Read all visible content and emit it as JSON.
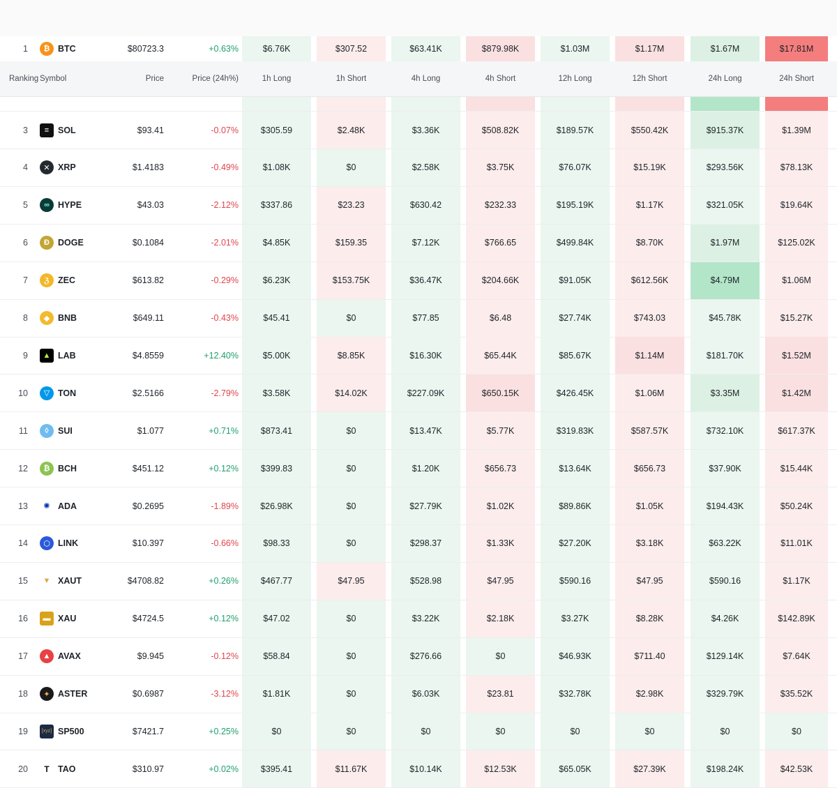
{
  "columns": [
    "Ranking",
    "Symbol",
    "Price",
    "Price (24h%)",
    "1h Long",
    "1h Short",
    "4h Long",
    "4h Short",
    "12h Long",
    "12h Short",
    "24h Long",
    "24h Short"
  ],
  "colors": {
    "positive": "#20a06e",
    "negative": "#e0464e"
  },
  "first_row": {
    "rank": "1",
    "symbol": "BTC",
    "icon": "bitcoin-icon",
    "price": "$80723.3",
    "change": "+0.63%",
    "values": [
      "$6.76K",
      "$307.52",
      "$63.41K",
      "$879.98K",
      "$1.03M",
      "$1.17M",
      "$1.67M",
      "$17.81M"
    ]
  },
  "rows": [
    {
      "rank": "3",
      "symbol": "SOL",
      "icon": "solana-icon",
      "price": "$93.41",
      "change": "-0.07%",
      "values": [
        "$305.59",
        "$2.48K",
        "$3.36K",
        "$508.82K",
        "$189.57K",
        "$550.42K",
        "$915.37K",
        "$1.39M"
      ]
    },
    {
      "rank": "4",
      "symbol": "XRP",
      "icon": "xrp-icon",
      "price": "$1.4183",
      "change": "-0.49%",
      "values": [
        "$1.08K",
        "$0",
        "$2.58K",
        "$3.75K",
        "$76.07K",
        "$15.19K",
        "$293.56K",
        "$78.13K"
      ]
    },
    {
      "rank": "5",
      "symbol": "HYPE",
      "icon": "hype-icon",
      "price": "$43.03",
      "change": "-2.12%",
      "values": [
        "$337.86",
        "$23.23",
        "$630.42",
        "$232.33",
        "$195.19K",
        "$1.17K",
        "$321.05K",
        "$19.64K"
      ]
    },
    {
      "rank": "6",
      "symbol": "DOGE",
      "icon": "doge-icon",
      "price": "$0.1084",
      "change": "-2.01%",
      "values": [
        "$4.85K",
        "$159.35",
        "$7.12K",
        "$766.65",
        "$499.84K",
        "$8.70K",
        "$1.97M",
        "$125.02K"
      ]
    },
    {
      "rank": "7",
      "symbol": "ZEC",
      "icon": "zcash-icon",
      "price": "$613.82",
      "change": "-0.29%",
      "values": [
        "$6.23K",
        "$153.75K",
        "$36.47K",
        "$204.66K",
        "$91.05K",
        "$612.56K",
        "$4.79M",
        "$1.06M"
      ]
    },
    {
      "rank": "8",
      "symbol": "BNB",
      "icon": "bnb-icon",
      "price": "$649.11",
      "change": "-0.43%",
      "values": [
        "$45.41",
        "$0",
        "$77.85",
        "$6.48",
        "$27.74K",
        "$743.03",
        "$45.78K",
        "$15.27K"
      ]
    },
    {
      "rank": "9",
      "symbol": "LAB",
      "icon": "lab-icon",
      "price": "$4.8559",
      "change": "+12.40%",
      "values": [
        "$5.00K",
        "$8.85K",
        "$16.30K",
        "$65.44K",
        "$85.67K",
        "$1.14M",
        "$181.70K",
        "$1.52M"
      ]
    },
    {
      "rank": "10",
      "symbol": "TON",
      "icon": "ton-icon",
      "price": "$2.5166",
      "change": "-2.79%",
      "values": [
        "$3.58K",
        "$14.02K",
        "$227.09K",
        "$650.15K",
        "$426.45K",
        "$1.06M",
        "$3.35M",
        "$1.42M"
      ]
    },
    {
      "rank": "11",
      "symbol": "SUI",
      "icon": "sui-icon",
      "price": "$1.077",
      "change": "+0.71%",
      "values": [
        "$873.41",
        "$0",
        "$13.47K",
        "$5.77K",
        "$319.83K",
        "$587.57K",
        "$732.10K",
        "$617.37K"
      ]
    },
    {
      "rank": "12",
      "symbol": "BCH",
      "icon": "bitcoin-cash-icon",
      "price": "$451.12",
      "change": "+0.12%",
      "values": [
        "$399.83",
        "$0",
        "$1.20K",
        "$656.73",
        "$13.64K",
        "$656.73",
        "$37.90K",
        "$15.44K"
      ]
    },
    {
      "rank": "13",
      "symbol": "ADA",
      "icon": "cardano-icon",
      "price": "$0.2695",
      "change": "-1.89%",
      "values": [
        "$26.98K",
        "$0",
        "$27.79K",
        "$1.02K",
        "$89.86K",
        "$1.05K",
        "$194.43K",
        "$50.24K"
      ]
    },
    {
      "rank": "14",
      "symbol": "LINK",
      "icon": "chainlink-icon",
      "price": "$10.397",
      "change": "-0.66%",
      "values": [
        "$98.33",
        "$0",
        "$298.37",
        "$1.33K",
        "$27.20K",
        "$3.18K",
        "$63.22K",
        "$11.01K"
      ]
    },
    {
      "rank": "15",
      "symbol": "XAUT",
      "icon": "tether-gold-icon",
      "price": "$4708.82",
      "change": "+0.26%",
      "values": [
        "$467.77",
        "$47.95",
        "$528.98",
        "$47.95",
        "$590.16",
        "$47.95",
        "$590.16",
        "$1.17K"
      ]
    },
    {
      "rank": "16",
      "symbol": "XAU",
      "icon": "gold-icon",
      "price": "$4724.5",
      "change": "+0.12%",
      "values": [
        "$47.02",
        "$0",
        "$3.22K",
        "$2.18K",
        "$3.27K",
        "$8.28K",
        "$4.26K",
        "$142.89K"
      ]
    },
    {
      "rank": "17",
      "symbol": "AVAX",
      "icon": "avalanche-icon",
      "price": "$9.945",
      "change": "-0.12%",
      "values": [
        "$58.84",
        "$0",
        "$276.66",
        "$0",
        "$46.93K",
        "$711.40",
        "$129.14K",
        "$7.64K"
      ]
    },
    {
      "rank": "18",
      "symbol": "ASTER",
      "icon": "aster-icon",
      "price": "$0.6987",
      "change": "-3.12%",
      "values": [
        "$1.81K",
        "$0",
        "$6.03K",
        "$23.81",
        "$32.78K",
        "$2.98K",
        "$329.79K",
        "$35.52K"
      ]
    },
    {
      "rank": "19",
      "symbol": "SP500",
      "icon": "xyz-sp500-icon",
      "icon_text": "[xyz]",
      "price": "$7421.7",
      "change": "+0.25%",
      "values": [
        "$0",
        "$0",
        "$0",
        "$0",
        "$0",
        "$0",
        "$0",
        "$0"
      ]
    },
    {
      "rank": "20",
      "symbol": "TAO",
      "icon": "bittensor-icon",
      "icon_text": "T",
      "price": "$310.97",
      "change": "+0.02%",
      "values": [
        "$395.41",
        "$11.67K",
        "$10.14K",
        "$12.53K",
        "$65.05K",
        "$27.39K",
        "$198.24K",
        "$42.53K"
      ]
    }
  ]
}
